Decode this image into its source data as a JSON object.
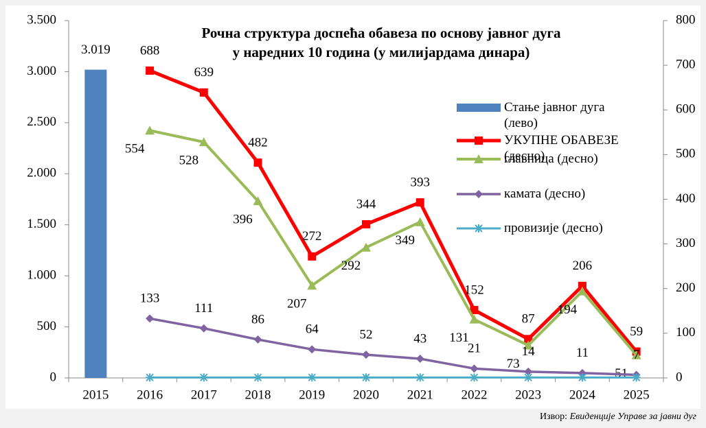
{
  "chart_data": {
    "type": "combo",
    "title": [
      "Рочна структура доспећа обавеза по основу јавног дуга",
      "у наредних 10 година (у милијардама динара)"
    ],
    "categories": [
      "2015",
      "2016",
      "2017",
      "2018",
      "2019",
      "2020",
      "2021",
      "2022",
      "2023",
      "2024",
      "2025"
    ],
    "ylim": [
      0,
      3500
    ],
    "yticks": [
      0,
      500,
      {
        "value": 1000,
        "label": "1.000"
      },
      {
        "value": 1500,
        "label": "1.500"
      },
      {
        "value": 2000,
        "label": "2.000"
      },
      {
        "value": 2500,
        "label": "2.500"
      },
      {
        "value": 3000,
        "label": "3.000"
      },
      {
        "value": 3500,
        "label": "3.500"
      }
    ],
    "y2lim": [
      0,
      800
    ],
    "y2ticks": [
      0,
      100,
      200,
      300,
      400,
      500,
      600,
      700,
      800
    ],
    "series": [
      {
        "name": "Стање јавног дуга (лево)",
        "type": "bar",
        "color": "#4f81bd",
        "values": [
          3019,
          null,
          null,
          null,
          null,
          null,
          null,
          null,
          null,
          null,
          null
        ],
        "value_labels": [
          "3.019",
          null,
          null,
          null,
          null,
          null,
          null,
          null,
          null,
          null,
          null
        ]
      },
      {
        "name": "УКУПНЕ ОБАВЕЗЕ (десно)",
        "type": "line",
        "axis": "y2",
        "marker": "square",
        "color": "#ff0000",
        "values": [
          null,
          688,
          639,
          482,
          272,
          344,
          393,
          152,
          87,
          206,
          59
        ],
        "show_labels": true
      },
      {
        "name": "главница (десно)",
        "type": "line",
        "axis": "y2",
        "marker": "triangle",
        "color": "#9bbb59",
        "values": [
          null,
          554,
          528,
          396,
          207,
          292,
          349,
          131,
          73,
          194,
          51
        ],
        "show_labels": true
      },
      {
        "name": "камата (десно)",
        "type": "line",
        "axis": "y2",
        "marker": "diamond",
        "color": "#8064a2",
        "values": [
          null,
          133,
          111,
          86,
          64,
          52,
          43,
          21,
          14,
          11,
          7
        ],
        "show_labels": true
      },
      {
        "name": "провизије (десно)",
        "type": "line",
        "axis": "y2",
        "marker": "asterisk",
        "color": "#4bacc6",
        "values": [
          null,
          1,
          1,
          1,
          1,
          1,
          1,
          1,
          1,
          1,
          1
        ],
        "show_labels": false
      }
    ],
    "source_label": "Извор:",
    "source": "Евиденције Управе за јавни дуг"
  }
}
